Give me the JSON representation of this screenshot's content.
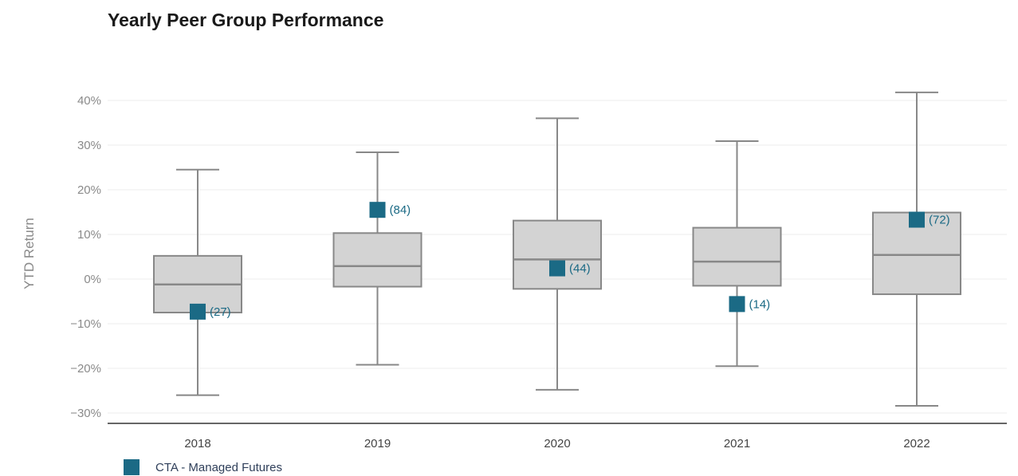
{
  "chart_data": {
    "type": "box",
    "title": "Yearly Peer Group Performance",
    "ylabel": "YTD Return",
    "xlabel": "",
    "ylim": [
      -30,
      40
    ],
    "y_ticks": [
      "−30%",
      "−20%",
      "−10%",
      "0%",
      "10%",
      "20%",
      "30%",
      "40%"
    ],
    "categories": [
      "2018",
      "2019",
      "2020",
      "2021",
      "2022"
    ],
    "boxes": [
      {
        "min": -26.0,
        "q1": -7.5,
        "median": -1.2,
        "q3": 5.2,
        "max": 24.5
      },
      {
        "min": -19.2,
        "q1": -1.7,
        "median": 2.9,
        "q3": 10.3,
        "max": 28.4
      },
      {
        "min": -24.8,
        "q1": -2.2,
        "median": 4.4,
        "q3": 13.1,
        "max": 36.0
      },
      {
        "min": -19.5,
        "q1": -1.5,
        "median": 3.9,
        "q3": 11.5,
        "max": 30.9
      },
      {
        "min": -28.4,
        "q1": -3.4,
        "median": 5.4,
        "q3": 14.9,
        "max": 41.8
      }
    ],
    "series": [
      {
        "name": "CTA - Managed Futures",
        "values": [
          -7.3,
          15.5,
          2.4,
          -5.6,
          13.3
        ],
        "rank_labels": [
          "(27)",
          "(84)",
          "(44)",
          "(14)",
          "(72)"
        ]
      }
    ],
    "legend_position": "bottom-left",
    "grid": true,
    "colors": {
      "box_fill": "#d3d3d3",
      "box_stroke": "#888888",
      "marker": "#1b6a85",
      "grid": "#eeeeee",
      "axis": "#333333"
    }
  }
}
